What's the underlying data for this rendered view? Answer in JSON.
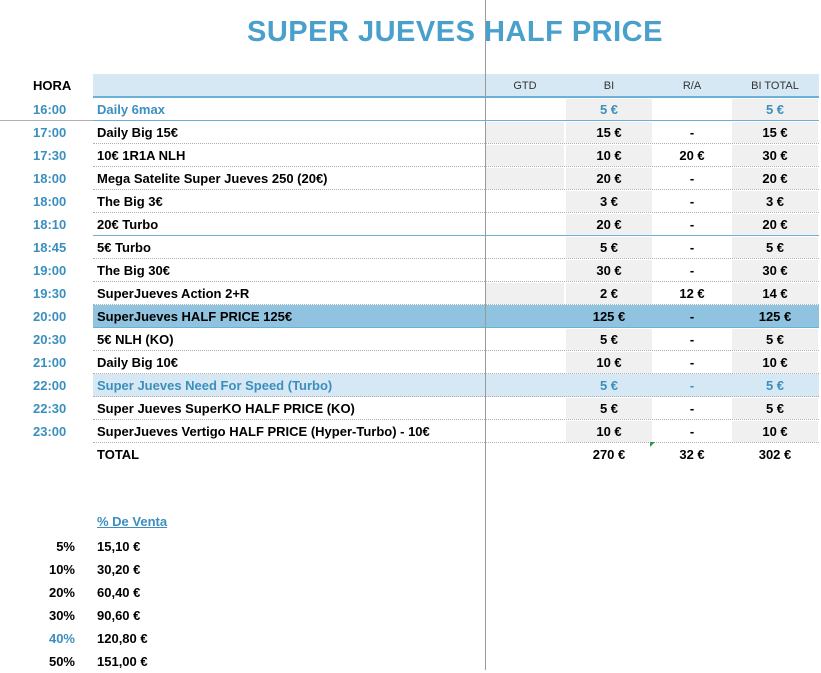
{
  "title": "SUPER JUEVES HALF PRICE",
  "headers": {
    "hora": "HORA",
    "gtd": "GTD",
    "bi": "BI",
    "ra": "R/A",
    "bi_total": "BI TOTAL"
  },
  "rows": [
    {
      "time": "16:00",
      "name": "Daily 6max",
      "gtd": "",
      "bi": "5 €",
      "ra": "",
      "bi_total": "5 €"
    },
    {
      "time": "17:00",
      "name": "Daily Big 15€",
      "gtd": "",
      "bi": "15 €",
      "ra": "-",
      "bi_total": "15 €"
    },
    {
      "time": "17:30",
      "name": "10€ 1R1A NLH",
      "gtd": "",
      "bi": "10 €",
      "ra": "20 €",
      "bi_total": "30 €"
    },
    {
      "time": "18:00",
      "name": "Mega Satelite Super Jueves 250 (20€)",
      "gtd": "",
      "bi": "20 €",
      "ra": "-",
      "bi_total": "20 €"
    },
    {
      "time": "18:00",
      "name": "The Big 3€",
      "gtd": "",
      "bi": "3 €",
      "ra": "-",
      "bi_total": "3 €"
    },
    {
      "time": "18:10",
      "name": "20€ Turbo",
      "gtd": "",
      "bi": "20 €",
      "ra": "-",
      "bi_total": "20 €"
    },
    {
      "time": "18:45",
      "name": "5€ Turbo",
      "gtd": "",
      "bi": "5 €",
      "ra": "-",
      "bi_total": "5 €"
    },
    {
      "time": "19:00",
      "name": "The Big 30€",
      "gtd": "",
      "bi": "30 €",
      "ra": "-",
      "bi_total": "30 €"
    },
    {
      "time": "19:30",
      "name": "SuperJueves Action 2+R",
      "gtd": "",
      "bi": "2 €",
      "ra": "12 €",
      "bi_total": "14 €"
    },
    {
      "time": "20:00",
      "name": "SuperJueves HALF PRICE 125€",
      "gtd": "",
      "bi": "125 €",
      "ra": "-",
      "bi_total": "125 €"
    },
    {
      "time": "20:30",
      "name": "5€ NLH (KO)",
      "gtd": "",
      "bi": "5 €",
      "ra": "-",
      "bi_total": "5 €"
    },
    {
      "time": "21:00",
      "name": "Daily Big 10€",
      "gtd": "",
      "bi": "10 €",
      "ra": "-",
      "bi_total": "10 €"
    },
    {
      "time": "22:00",
      "name": "Super Jueves Need For Speed (Turbo)",
      "gtd": "",
      "bi": "5 €",
      "ra": "-",
      "bi_total": "5 €"
    },
    {
      "time": "22:30",
      "name": "Super Jueves SuperKO HALF PRICE (KO)",
      "gtd": "",
      "bi": "5 €",
      "ra": "-",
      "bi_total": "5 €"
    },
    {
      "time": "23:00",
      "name": "SuperJueves Vertigo HALF PRICE (Hyper-Turbo) - 10€",
      "gtd": "",
      "bi": "10 €",
      "ra": "-",
      "bi_total": "10 €"
    }
  ],
  "total": {
    "label": "TOTAL",
    "bi": "270 €",
    "ra": "32 €",
    "bi_total": "302 €"
  },
  "venta": {
    "title": "% De Venta",
    "items": [
      {
        "pct": "5%",
        "amount": "15,10 €"
      },
      {
        "pct": "10%",
        "amount": "30,20 €"
      },
      {
        "pct": "20%",
        "amount": "60,40 €"
      },
      {
        "pct": "30%",
        "amount": "90,60 €"
      },
      {
        "pct": "40%",
        "amount": "120,80 €"
      },
      {
        "pct": "50%",
        "amount": "151,00 €"
      }
    ]
  },
  "colors": {
    "accent": "#4aa0cc",
    "highlight": "#8fc3e0",
    "light_highlight": "#d6e8f4"
  }
}
